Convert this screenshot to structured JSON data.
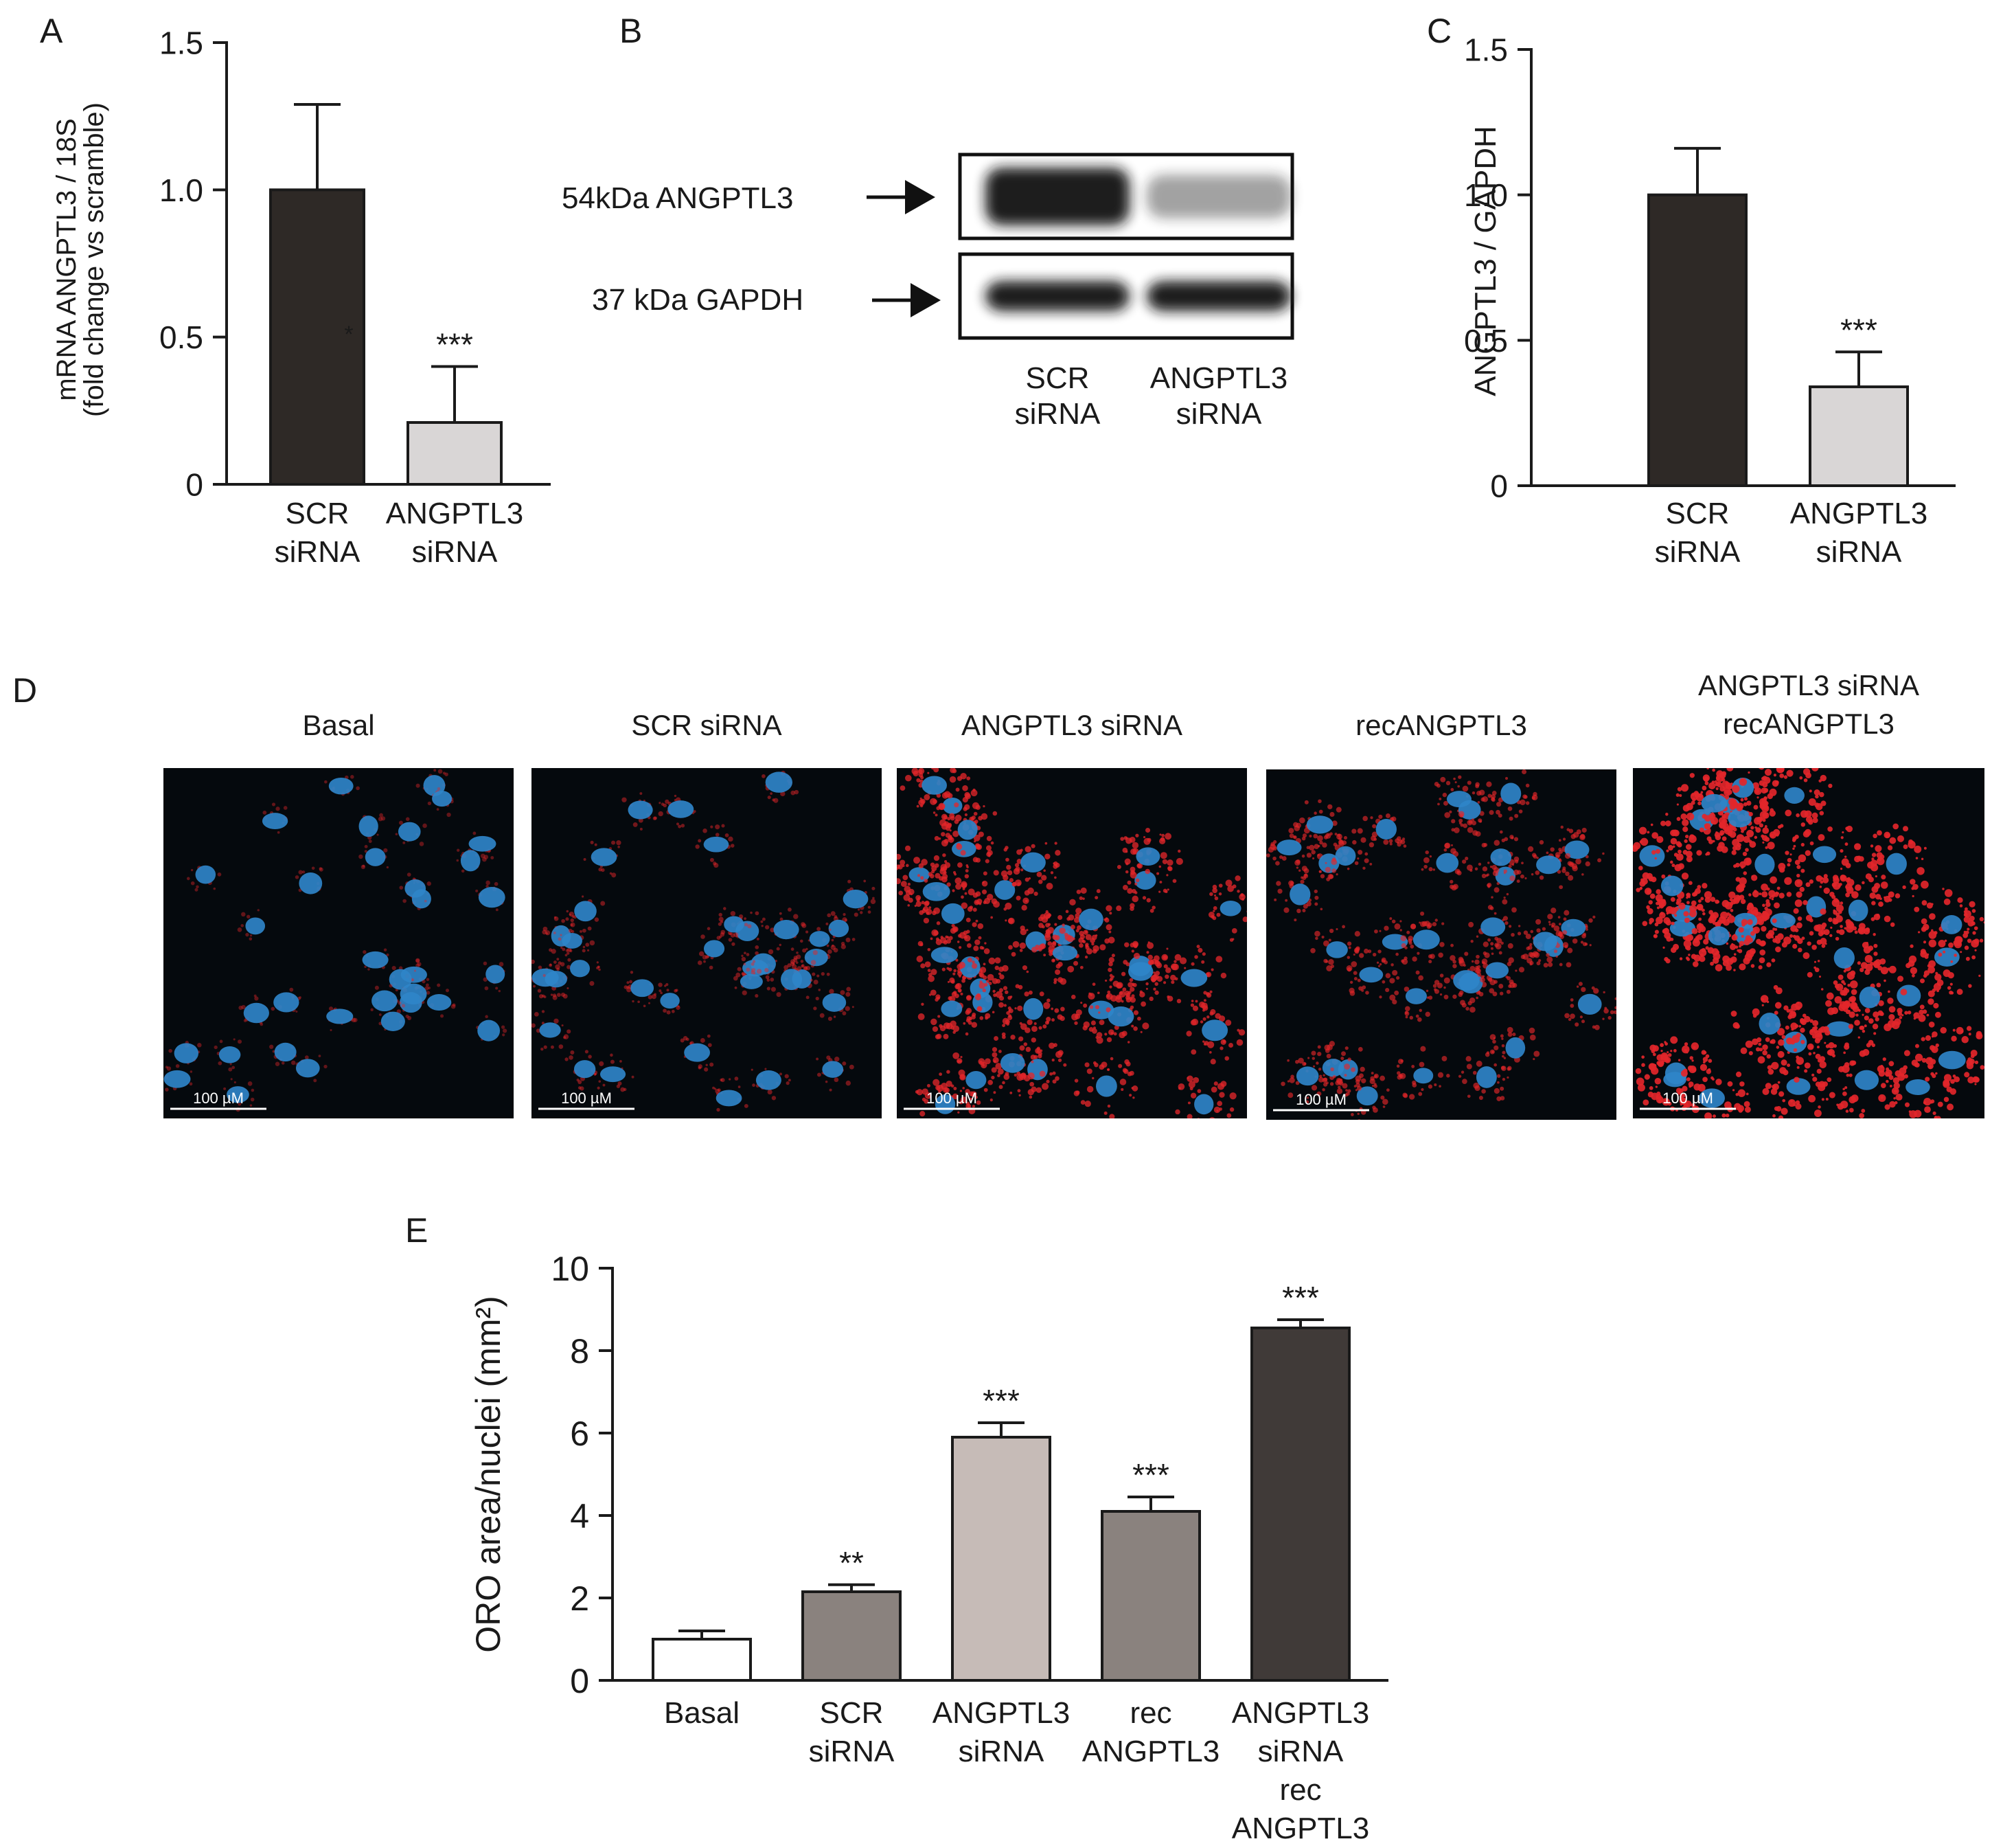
{
  "colors": {
    "axis": "#1a1a1a",
    "bar_dark": "#2e2926",
    "bar_light": "#d9d6d6",
    "bar_e_mid": "#8a827e",
    "bar_e_pale": "#c6bbb7",
    "bar_e_darkest": "#403a38",
    "micro_bg": "#05090d",
    "nucleus": "#2f84c8",
    "droplet": "#e2262a",
    "blot_band": "#141414"
  },
  "panels": {
    "A": "A",
    "B": "B",
    "C": "C",
    "D": "D",
    "E": "E"
  },
  "chart_data": [
    {
      "panel": "A",
      "type": "bar",
      "categories": [
        "SCR\nsiRNA",
        "ANGPTL3\nsiRNA"
      ],
      "values": [
        1.0,
        0.21
      ],
      "errors": [
        0.29,
        0.19
      ],
      "significance": [
        "",
        "***"
      ],
      "stray_mark": "*",
      "colors": [
        "#2e2926",
        "#d9d6d6"
      ],
      "ylabel": [
        "mRNA ANGPTL3 / 18S",
        "(fold change vs scramble)"
      ],
      "ylim": [
        0,
        1.5
      ],
      "yticks": [
        0,
        0.5,
        1.0,
        1.5
      ],
      "ytick_labels": [
        "0",
        "0.5",
        "1.0",
        "1.5"
      ]
    },
    {
      "panel": "C",
      "type": "bar",
      "categories": [
        "SCR\nsiRNA",
        "ANGPTL3\nsiRNA"
      ],
      "values": [
        1.0,
        0.34
      ],
      "errors": [
        0.16,
        0.12
      ],
      "significance": [
        "",
        "***"
      ],
      "colors": [
        "#2e2926",
        "#d9d6d6"
      ],
      "ylabel": [
        "ANGPTL3 / GAPDH"
      ],
      "ylim": [
        0,
        1.5
      ],
      "yticks": [
        0,
        0.5,
        1.0,
        1.5
      ],
      "ytick_labels": [
        "0",
        "0.5",
        "1.0",
        "1.5"
      ]
    },
    {
      "panel": "E",
      "type": "bar",
      "categories": [
        "Basal",
        "SCR\nsiRNA",
        "ANGPTL3\nsiRNA",
        "rec\nANGPTL3",
        "ANGPTL3\nsiRNA\nrec\nANGPTL3"
      ],
      "values": [
        1.0,
        2.15,
        5.9,
        4.1,
        8.55
      ],
      "errors": [
        0.2,
        0.17,
        0.35,
        0.35,
        0.2
      ],
      "significance": [
        "",
        "**",
        "***",
        "***",
        "***"
      ],
      "colors": [
        "#ffffff",
        "#8a827e",
        "#c6bbb7",
        "#8a827e",
        "#403a38"
      ],
      "ylabel": [
        "ORO area/nuclei (mm²)"
      ],
      "ylim": [
        0,
        10
      ],
      "yticks": [
        0,
        2,
        4,
        6,
        8,
        10
      ],
      "ytick_labels": [
        "0",
        "2",
        "4",
        "6",
        "8",
        "10"
      ]
    }
  ],
  "western_blot": {
    "rows": [
      {
        "label": "54kDa ANGPTL3",
        "band_intensity": [
          1.0,
          0.3
        ]
      },
      {
        "label": "37 kDa GAPDH",
        "band_intensity": [
          1.0,
          1.0
        ]
      }
    ],
    "lanes": [
      "SCR\nsiRNA",
      "ANGPTL3\nsiRNA"
    ]
  },
  "micrographs": {
    "scale_label": "100 µM",
    "items": [
      {
        "title": "Basal",
        "lipid_level": 0.12
      },
      {
        "title": "SCR siRNA",
        "lipid_level": 0.25
      },
      {
        "title": "ANGPTL3 siRNA",
        "lipid_level": 0.7
      },
      {
        "title": "recANGPTL3",
        "lipid_level": 0.5
      },
      {
        "title": "ANGPTL3 siRNA\nrecANGPTL3",
        "lipid_level": 0.95
      }
    ]
  }
}
